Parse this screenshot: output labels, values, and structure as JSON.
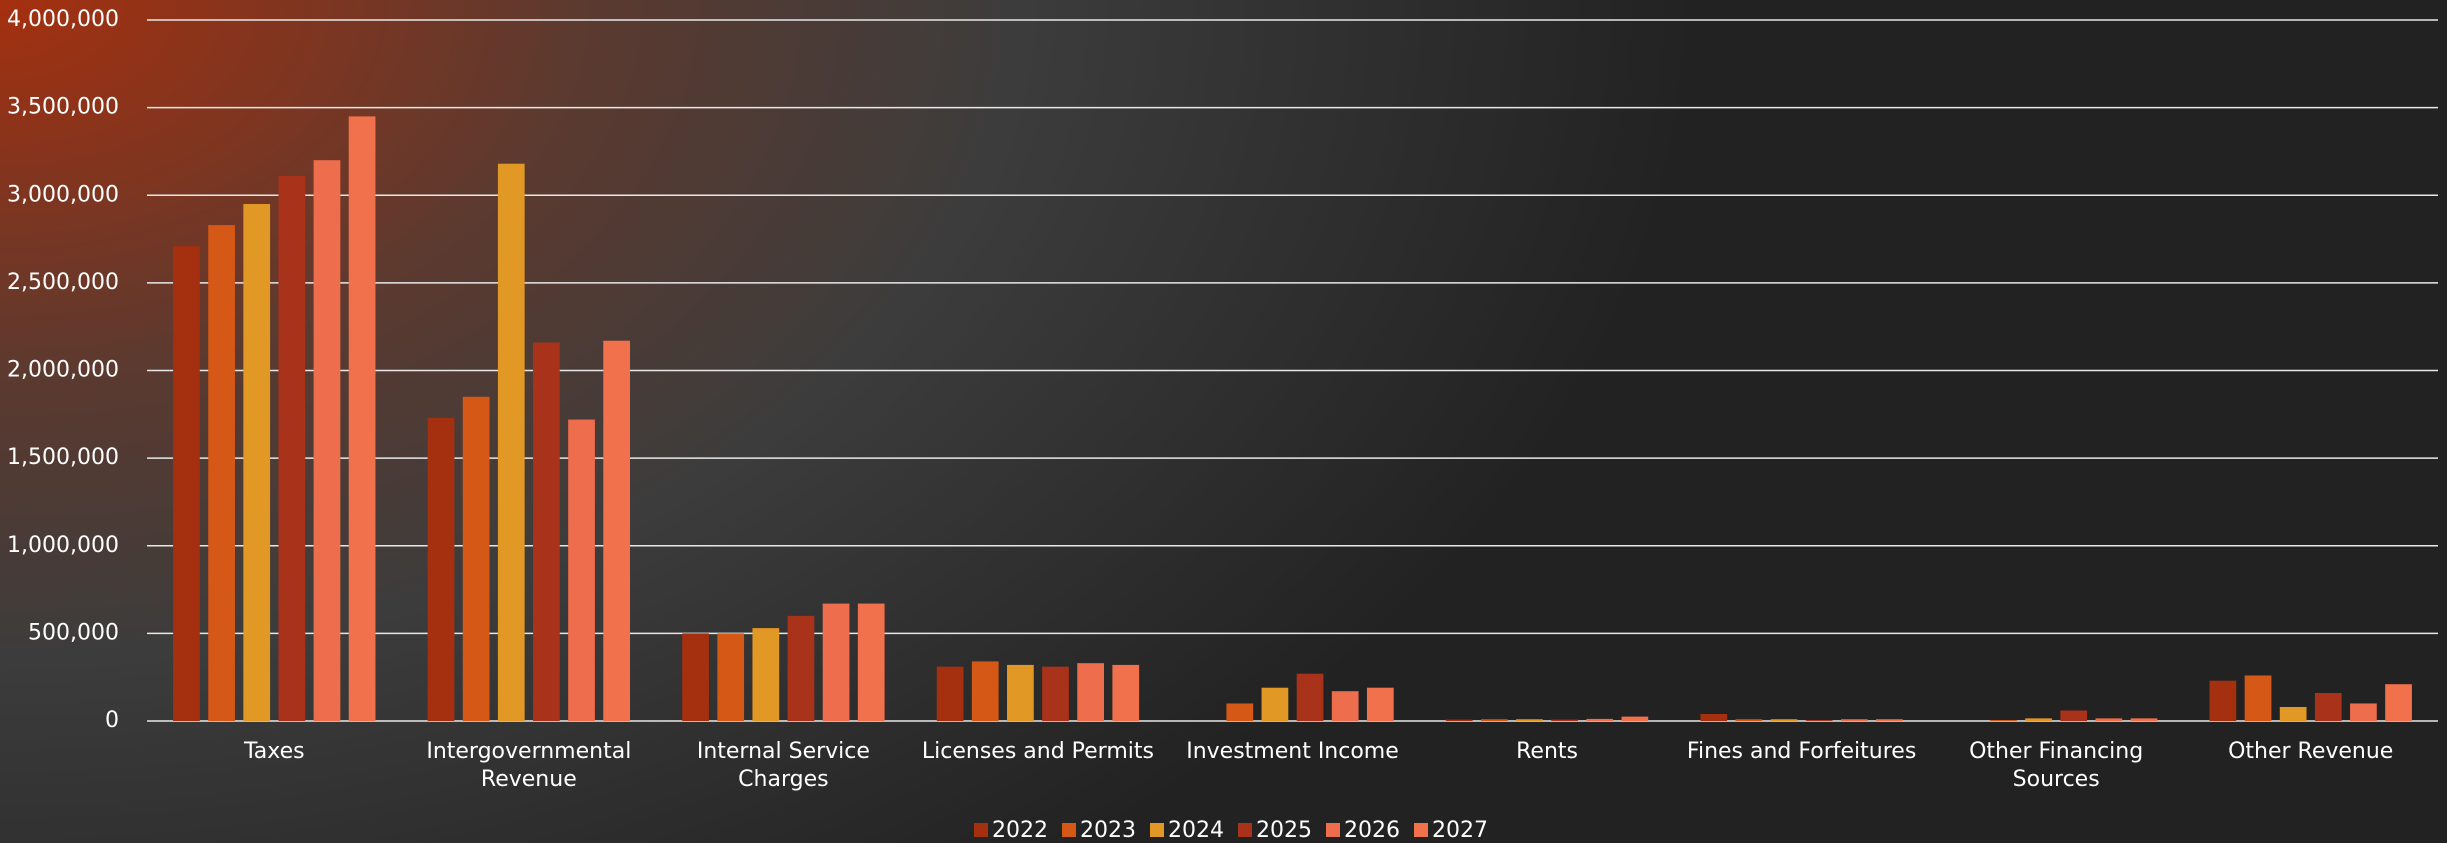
{
  "chart_data": {
    "type": "bar",
    "categories": [
      "Taxes",
      "Intergovernmental Revenue",
      "Internal Service Charges",
      "Licenses and Permits",
      "Investment Income",
      "Rents",
      "Fines and Forfeitures",
      "Other Financing Sources",
      "Other Revenue"
    ],
    "series": [
      {
        "name": "2022",
        "color": "#a5300f",
        "values": [
          2710000,
          1730000,
          500000,
          310000,
          0,
          8000,
          40000,
          0,
          230000
        ]
      },
      {
        "name": "2023",
        "color": "#d55816",
        "values": [
          2830000,
          1850000,
          500000,
          340000,
          100000,
          10000,
          10000,
          5000,
          260000
        ]
      },
      {
        "name": "2024",
        "color": "#e19825",
        "values": [
          2950000,
          3180000,
          530000,
          320000,
          190000,
          10000,
          10000,
          15000,
          80000
        ]
      },
      {
        "name": "2025",
        "color": "#a8321a",
        "values": [
          3110000,
          2160000,
          600000,
          310000,
          270000,
          8000,
          5000,
          60000,
          160000
        ]
      },
      {
        "name": "2026",
        "color": "#ee6d4d",
        "values": [
          3200000,
          1720000,
          670000,
          330000,
          170000,
          12000,
          10000,
          15000,
          100000
        ]
      },
      {
        "name": "2027",
        "color": "#f2714d",
        "values": [
          3450000,
          2170000,
          670000,
          320000,
          190000,
          25000,
          10000,
          15000,
          210000
        ]
      }
    ],
    "ylim": [
      0,
      4000000
    ],
    "yticks": [
      0,
      {
        "value": 500000,
        "label": "500,000"
      },
      {
        "value": 1000000,
        "label": "1,000,000"
      },
      {
        "value": 1500000,
        "label": "1,500,000"
      },
      {
        "value": 2000000,
        "label": "2,000,000"
      },
      {
        "value": 2500000,
        "label": "2,500,000"
      },
      {
        "value": 3000000,
        "label": "3,000,000"
      },
      {
        "value": 3500000,
        "label": "3,500,000"
      },
      {
        "value": 4000000,
        "label": "4,000,000"
      }
    ],
    "grid": true,
    "legend": "bottom"
  }
}
